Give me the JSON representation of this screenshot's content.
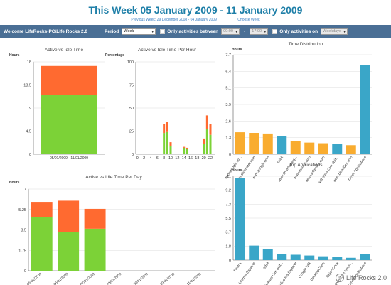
{
  "header": {
    "title": "This Week 05 January 2009 - 11 January 2009",
    "previous_week": "Previous Week: 29 December 2008 - 04 January 2009",
    "choose_week": "Choose Week"
  },
  "toolbar": {
    "welcome": "Welcome LifeRocks-PC\\Life Rocks 2.0",
    "period_label": "Period",
    "period_value": "Week",
    "only_between_label": "Only activities between",
    "time_from": "09:00",
    "dash": "-",
    "time_to": "17:00",
    "only_on_label": "Only activities on",
    "days_value": "Weekdays"
  },
  "panels": {
    "active_idle": "Active vs Idle Time",
    "per_hour": "Active vs Idle Time Per Hour",
    "per_day": "Active vs Idle Time Per Day",
    "distribution": "Time Distribution",
    "top_apps": "Top Applications"
  },
  "units": {
    "hours": "Hours",
    "percentage": "Percentage"
  },
  "watermark": "Life Rocks 2.0",
  "colors": {
    "active": "#7cd237",
    "idle": "#ff6a30",
    "orange_bar": "#f9ac2f",
    "blue_bar": "#3aa6c8",
    "grid": "#dddddd"
  },
  "chart_data": [
    {
      "id": "active_idle",
      "type": "bar",
      "categories": [
        "05/01/2009 - 11/01/2009"
      ],
      "series": [
        {
          "values": [
            11.6
          ]
        },
        {
          "values": [
            5.6
          ]
        }
      ],
      "ylim": [
        0,
        18
      ],
      "yticks": [
        "0",
        "4.5",
        "9",
        "13.5",
        "18"
      ]
    },
    {
      "id": "per_hour",
      "type": "bar",
      "categories": [
        "0",
        "1",
        "2",
        "3",
        "4",
        "5",
        "6",
        "7",
        "8",
        "9",
        "10",
        "11",
        "12",
        "13",
        "14",
        "15",
        "16",
        "17",
        "18",
        "19",
        "20",
        "21",
        "22",
        "23"
      ],
      "xticks": [
        "0",
        "2",
        "4",
        "6",
        "8",
        "10",
        "12",
        "14",
        "16",
        "18",
        "20",
        "22"
      ],
      "series": [
        {
          "values": [
            0,
            0,
            0,
            0,
            0,
            0,
            0,
            0,
            23,
            24,
            9,
            0,
            0,
            0,
            7,
            6,
            0,
            0,
            0,
            0,
            11,
            27,
            21,
            0
          ]
        },
        {
          "values": [
            0,
            0,
            0,
            0,
            0,
            0,
            0,
            0,
            10,
            11,
            4,
            0,
            0,
            0,
            1,
            1,
            0,
            0,
            0,
            0,
            6,
            15,
            12,
            0
          ]
        }
      ],
      "ylim": [
        0,
        100
      ],
      "yticks": [
        "0",
        "25",
        "50",
        "75",
        "100"
      ]
    },
    {
      "id": "per_day",
      "type": "bar",
      "categories": [
        "05/01/2009",
        "06/01/2009",
        "07/01/2009",
        "08/01/2009",
        "09/01/2009",
        "10/01/2009",
        "11/01/2009"
      ],
      "series": [
        {
          "values": [
            4.6,
            3.3,
            3.6,
            0,
            0,
            0,
            0
          ]
        },
        {
          "values": [
            1.3,
            2.7,
            1.7,
            0,
            0,
            0,
            0
          ]
        }
      ],
      "ylim": [
        0,
        7
      ],
      "yticks": [
        "0",
        "1.75",
        "3.5",
        "5.25",
        "7"
      ]
    },
    {
      "id": "distribution",
      "type": "bar",
      "categories": [
        "www.google.co...",
        "www.slidemder.com",
        "www.google.com",
        "tafeit",
        "www.downloadsq...",
        "www.mirrasr.com",
        "www.softpedia.com",
        "Windows Live Writ...",
        "www.bloaddes.com",
        "Other Applications"
      ],
      "values": [
        1.7,
        1.65,
        1.6,
        1.4,
        1.0,
        0.9,
        0.85,
        0.8,
        0.7,
        6.9
      ],
      "ylim": [
        0,
        7.7
      ],
      "yticks": [
        "0",
        "1.3",
        "2.6",
        "3.9",
        "5.1",
        "6.4",
        "7.7"
      ]
    },
    {
      "id": "top_apps",
      "type": "bar",
      "categories": [
        "Firefox",
        "Internet Explorer",
        "tafeit",
        "Windows Live Writ...",
        "Windows Explorer",
        "Google Talk",
        "DesktopClient",
        "ObjectDock",
        "Windows Live Mess...",
        "Other Applications"
      ],
      "values": [
        10.8,
        1.9,
        1.4,
        0.8,
        0.7,
        0.6,
        0.5,
        0.45,
        0.3,
        0.8
      ],
      "ylim": [
        0,
        11
      ],
      "yticks": [
        "0",
        "1.8",
        "3.7",
        "5.5",
        "7.3",
        "9.2",
        "11"
      ]
    }
  ]
}
